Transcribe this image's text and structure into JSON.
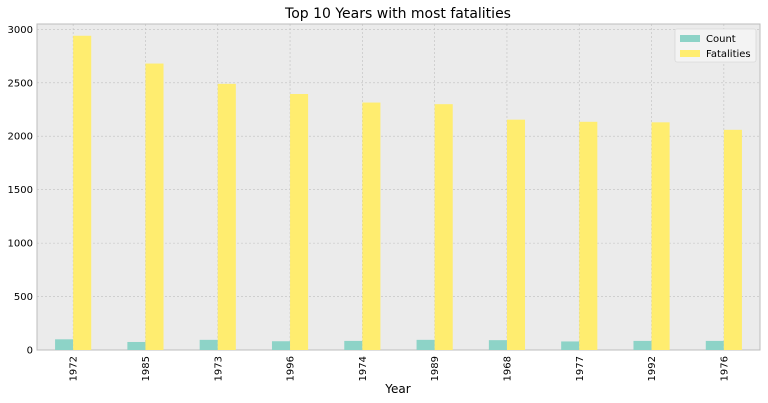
{
  "chart_data": {
    "type": "bar",
    "title": "Top 10 Years with most fatalities",
    "xlabel": "Year",
    "ylabel": "",
    "categories": [
      "1972",
      "1985",
      "1973",
      "1996",
      "1974",
      "1989",
      "1968",
      "1977",
      "1992",
      "1976"
    ],
    "series": [
      {
        "name": "Count",
        "color": "#8dd3c7",
        "values": [
          100,
          75,
          95,
          82,
          85,
          95,
          92,
          80,
          85,
          85
        ]
      },
      {
        "name": "Fatalities",
        "color": "#ffed6f",
        "values": [
          2940,
          2680,
          2490,
          2395,
          2315,
          2300,
          2155,
          2135,
          2130,
          2060
        ]
      }
    ],
    "ylim": [
      0,
      3050
    ],
    "yticks": [
      0,
      500,
      1000,
      1500,
      2000,
      2500,
      3000
    ],
    "grid": true,
    "legend_position": "top-right",
    "colors": {
      "plot_background": "#ebebeb",
      "grid": "#bfbfbf",
      "axis": "#bcbcbc"
    }
  }
}
